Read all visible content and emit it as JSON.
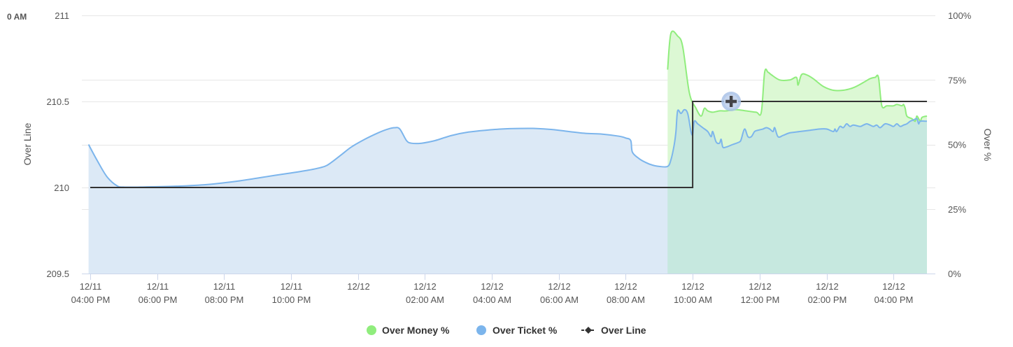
{
  "corner_label": "0 AM",
  "colors": {
    "money": "#90ed7d",
    "money_fill": "#dcf8d4",
    "ticket": "#7cb5ec",
    "ticket_fill": "#dce9f6",
    "overlap_fill": "#c6e8df",
    "line": "#333333",
    "grid": "#e6e6e6",
    "marker": "#434348",
    "marker_ring": "#a9c2e8"
  },
  "chart_data": {
    "type": "line",
    "title": "",
    "x_axis": {
      "ticks": [
        {
          "x": 0,
          "date": "12/11",
          "time": "04:00 PM"
        },
        {
          "x": 2,
          "date": "12/11",
          "time": "06:00 PM"
        },
        {
          "x": 4,
          "date": "12/11",
          "time": "08:00 PM"
        },
        {
          "x": 6,
          "date": "12/11",
          "time": "10:00 PM"
        },
        {
          "x": 8,
          "date": "12/12",
          "time": ""
        },
        {
          "x": 10,
          "date": "12/12",
          "time": "02:00 AM"
        },
        {
          "x": 12,
          "date": "12/12",
          "time": "04:00 AM"
        },
        {
          "x": 14,
          "date": "12/12",
          "time": "06:00 AM"
        },
        {
          "x": 16,
          "date": "12/12",
          "time": "08:00 AM"
        },
        {
          "x": 18,
          "date": "12/12",
          "time": "10:00 AM"
        },
        {
          "x": 20,
          "date": "12/12",
          "time": "12:00 PM"
        },
        {
          "x": 22,
          "date": "12/12",
          "time": "02:00 PM"
        },
        {
          "x": 24,
          "date": "12/12",
          "time": "04:00 PM"
        }
      ],
      "range": [
        -0.25,
        25.25
      ]
    },
    "y_left": {
      "title": "Over Line",
      "range": [
        209.5,
        211
      ],
      "ticks": [
        "209.5",
        "210",
        "210.5",
        "211"
      ]
    },
    "y_right": {
      "title": "Over %",
      "range": [
        0,
        100
      ],
      "ticks": [
        "0%",
        "25%",
        "50%",
        "75%",
        "100%"
      ]
    },
    "grid": true,
    "legend_position": "bottom-center",
    "series": [
      {
        "name": "Over Money %",
        "axis": "right",
        "type": "area",
        "points": [
          [
            17.25,
            79
          ],
          [
            17.35,
            93
          ],
          [
            17.55,
            92
          ],
          [
            17.7,
            88
          ],
          [
            17.9,
            70
          ],
          [
            18.1,
            64
          ],
          [
            18.25,
            61
          ],
          [
            18.35,
            64
          ],
          [
            18.45,
            63
          ],
          [
            18.6,
            62.5
          ],
          [
            18.8,
            63
          ],
          [
            19.0,
            63
          ],
          [
            19.3,
            63.5
          ],
          [
            19.6,
            63
          ],
          [
            19.9,
            62.5
          ],
          [
            20.05,
            62.5
          ],
          [
            20.15,
            78
          ],
          [
            20.25,
            78
          ],
          [
            20.35,
            77
          ],
          [
            20.6,
            75
          ],
          [
            20.9,
            75
          ],
          [
            21.1,
            76
          ],
          [
            21.15,
            73
          ],
          [
            21.25,
            77
          ],
          [
            21.4,
            77
          ],
          [
            21.6,
            75.5
          ],
          [
            21.9,
            72.5
          ],
          [
            22.2,
            71
          ],
          [
            22.5,
            71
          ],
          [
            22.8,
            72
          ],
          [
            23.1,
            74
          ],
          [
            23.3,
            75.5
          ],
          [
            23.45,
            76
          ],
          [
            23.55,
            76
          ],
          [
            23.65,
            65
          ],
          [
            23.8,
            65
          ],
          [
            24.0,
            65
          ],
          [
            24.1,
            65.5
          ],
          [
            24.25,
            65
          ],
          [
            24.3,
            65.5
          ],
          [
            24.35,
            64
          ],
          [
            24.4,
            61
          ],
          [
            24.55,
            60
          ],
          [
            24.65,
            59
          ],
          [
            24.7,
            61
          ],
          [
            24.8,
            59
          ],
          [
            24.85,
            60.5
          ],
          [
            25.0,
            61
          ]
        ]
      },
      {
        "name": "Over Ticket %",
        "axis": "right",
        "type": "area",
        "points": [
          [
            -0.05,
            50
          ],
          [
            0.2,
            44
          ],
          [
            0.5,
            37.5
          ],
          [
            0.8,
            34
          ],
          [
            1.0,
            33.5
          ],
          [
            1.5,
            33.5
          ],
          [
            2.5,
            33.8
          ],
          [
            3.5,
            34.5
          ],
          [
            4.5,
            36
          ],
          [
            5.5,
            38
          ],
          [
            6.5,
            40
          ],
          [
            7.0,
            41.5
          ],
          [
            7.2,
            43
          ],
          [
            7.5,
            46
          ],
          [
            7.8,
            49
          ],
          [
            8.2,
            52
          ],
          [
            8.6,
            54.5
          ],
          [
            8.9,
            56
          ],
          [
            9.1,
            56.5
          ],
          [
            9.25,
            56
          ],
          [
            9.45,
            51.5
          ],
          [
            9.6,
            50.5
          ],
          [
            9.9,
            50.5
          ],
          [
            10.3,
            51.5
          ],
          [
            10.8,
            53.5
          ],
          [
            11.3,
            54.8
          ],
          [
            11.8,
            55.5
          ],
          [
            12.3,
            56
          ],
          [
            12.8,
            56.2
          ],
          [
            13.3,
            56.2
          ],
          [
            13.8,
            55.8
          ],
          [
            14.3,
            55
          ],
          [
            14.8,
            54.3
          ],
          [
            15.3,
            54
          ],
          [
            15.8,
            53.2
          ],
          [
            16.0,
            52.5
          ],
          [
            16.15,
            51.5
          ],
          [
            16.2,
            47
          ],
          [
            16.4,
            44.5
          ],
          [
            16.6,
            43
          ],
          [
            16.8,
            42
          ],
          [
            17.0,
            41.5
          ],
          [
            17.25,
            41.5
          ],
          [
            17.35,
            44
          ],
          [
            17.45,
            50
          ],
          [
            17.5,
            55
          ],
          [
            17.55,
            63
          ],
          [
            17.65,
            62
          ],
          [
            17.75,
            63.5
          ],
          [
            17.85,
            62
          ],
          [
            17.95,
            55
          ],
          [
            18.0,
            54
          ],
          [
            18.05,
            59
          ],
          [
            18.15,
            58
          ],
          [
            18.3,
            56.5
          ],
          [
            18.45,
            55
          ],
          [
            18.55,
            53
          ],
          [
            18.6,
            55
          ],
          [
            18.7,
            51
          ],
          [
            18.8,
            50.5
          ],
          [
            18.85,
            52
          ],
          [
            18.9,
            49
          ],
          [
            19.0,
            49
          ],
          [
            19.2,
            50
          ],
          [
            19.4,
            51
          ],
          [
            19.45,
            52
          ],
          [
            19.55,
            56
          ],
          [
            19.65,
            53
          ],
          [
            19.75,
            53
          ],
          [
            19.85,
            55
          ],
          [
            19.95,
            55.5
          ],
          [
            20.1,
            56
          ],
          [
            20.2,
            56.5
          ],
          [
            20.3,
            56
          ],
          [
            20.4,
            55
          ],
          [
            20.45,
            56.5
          ],
          [
            20.55,
            53
          ],
          [
            20.7,
            53.5
          ],
          [
            20.9,
            54.5
          ],
          [
            21.2,
            55
          ],
          [
            21.5,
            55.5
          ],
          [
            21.8,
            56
          ],
          [
            22.0,
            56
          ],
          [
            22.2,
            55
          ],
          [
            22.25,
            56
          ],
          [
            22.3,
            55
          ],
          [
            22.4,
            57
          ],
          [
            22.5,
            56.5
          ],
          [
            22.6,
            58
          ],
          [
            22.7,
            57
          ],
          [
            22.8,
            57.5
          ],
          [
            23.0,
            57
          ],
          [
            23.1,
            57.5
          ],
          [
            23.2,
            58
          ],
          [
            23.3,
            57.5
          ],
          [
            23.4,
            57
          ],
          [
            23.5,
            57.5
          ],
          [
            23.6,
            56.5
          ],
          [
            23.75,
            58
          ],
          [
            23.9,
            57.5
          ],
          [
            24.0,
            57
          ],
          [
            24.1,
            58
          ],
          [
            24.2,
            57
          ],
          [
            24.3,
            57.5
          ],
          [
            24.4,
            58
          ],
          [
            24.5,
            59
          ],
          [
            24.6,
            59.5
          ],
          [
            24.7,
            60
          ],
          [
            24.75,
            58
          ],
          [
            24.8,
            59
          ],
          [
            25.0,
            59
          ]
        ]
      },
      {
        "name": "Over Line",
        "axis": "left",
        "type": "step",
        "points": [
          [
            0,
            210
          ],
          [
            18.0,
            210
          ],
          [
            18.0,
            210.5
          ],
          [
            25.0,
            210.5
          ]
        ],
        "marker": [
          19.15,
          210.5
        ]
      }
    ]
  }
}
